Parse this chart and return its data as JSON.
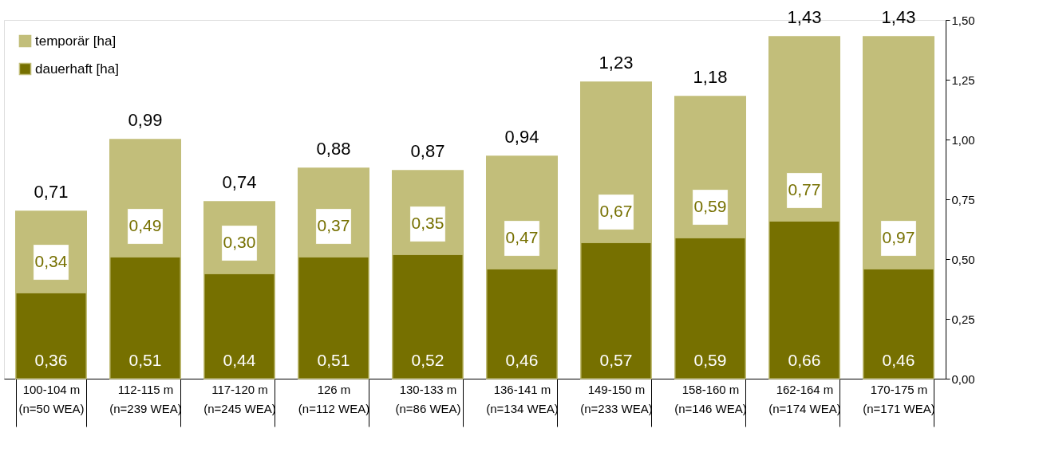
{
  "chart_data": {
    "type": "bar",
    "stacked": true,
    "categories": [
      "100-104 m\n(n=50 WEA)",
      "112-115 m\n(n=239 WEA)",
      "117-120 m\n(n=245 WEA)",
      "126 m\n(n=112 WEA)",
      "130-133 m\n(n=86 WEA)",
      "136-141 m\n(n=134 WEA)",
      "149-150 m\n(n=233 WEA)",
      "158-160 m\n(n=146 WEA)",
      "162-164 m\n(n=174 WEA)",
      "170-175 m\n(n=171 WEA)"
    ],
    "series": [
      {
        "name": "dauerhaft [ha]",
        "color": "#767000",
        "values": [
          0.36,
          0.51,
          0.44,
          0.51,
          0.52,
          0.46,
          0.57,
          0.59,
          0.66,
          0.46
        ],
        "value_labels": [
          "0,36",
          "0,51",
          "0,44",
          "0,51",
          "0,52",
          "0,46",
          "0,57",
          "0,59",
          "0,66",
          "0,46"
        ]
      },
      {
        "name": "temporär [ha]",
        "color": "#c2be7a",
        "values": [
          0.34,
          0.49,
          0.3,
          0.37,
          0.35,
          0.47,
          0.67,
          0.59,
          0.77,
          0.97
        ],
        "value_labels": [
          "0,34",
          "0,49",
          "0,30",
          "0,37",
          "0,35",
          "0,47",
          "0,67",
          "0,59",
          "0,77",
          "0,97"
        ]
      }
    ],
    "totals": [
      "0,71",
      "0,99",
      "0,74",
      "0,88",
      "0,87",
      "0,94",
      "1,23",
      "1,18",
      "1,43",
      "1,43"
    ],
    "ylim": [
      0,
      1.5
    ],
    "yticks": [
      {
        "value": 0,
        "label": "0,00"
      },
      {
        "value": 0.25,
        "label": "0,25"
      },
      {
        "value": 0.5,
        "label": "0,50"
      },
      {
        "value": 0.75,
        "label": "0,75"
      },
      {
        "value": 1.0,
        "label": "1,00"
      },
      {
        "value": 1.25,
        "label": "1,25"
      },
      {
        "value": 1.5,
        "label": "1,50"
      }
    ],
    "grid": false,
    "legend": "top left"
  }
}
